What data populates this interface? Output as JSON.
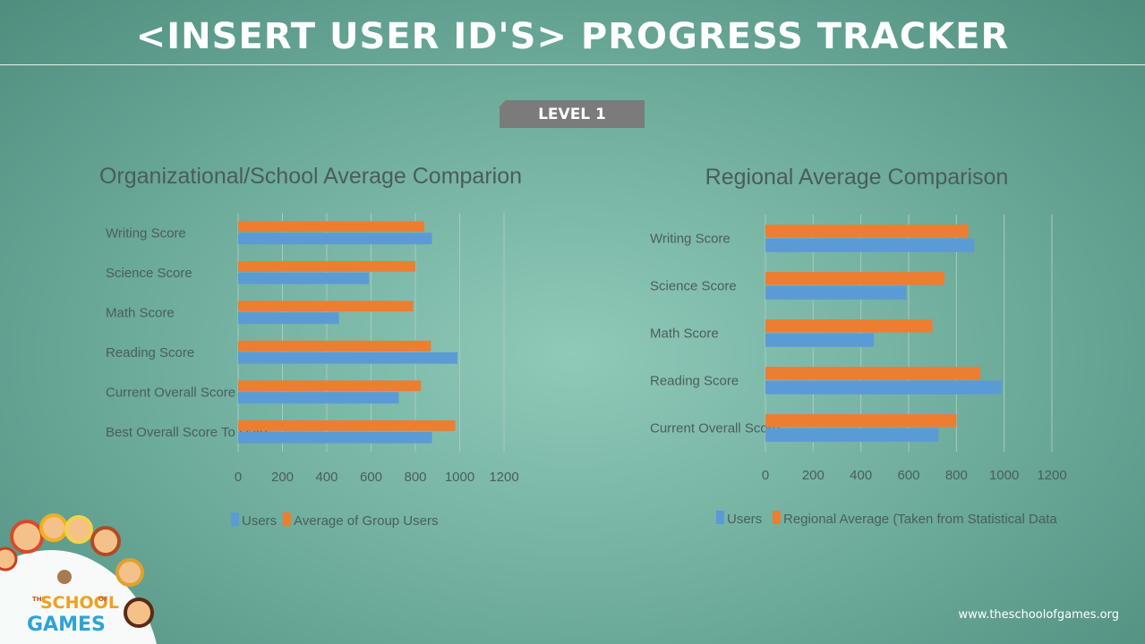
{
  "header": {
    "title": "<INSERT USER ID'S> PROGRESS TRACKER",
    "level": "LEVEL 1"
  },
  "colors": {
    "users": "#5b9bd5",
    "comparison": "#ed7d31"
  },
  "logo": {
    "line1": "THE",
    "line2": "SCHOOL",
    "line3": "OF",
    "line4": "GAMES"
  },
  "footer": {
    "url": "www.theschoolofgames.org"
  },
  "chart_data": [
    {
      "type": "bar",
      "orientation": "horizontal",
      "title": "Organizational/School Average Comparion",
      "categories": [
        "Writing Score",
        "Science Score",
        "Math Score",
        "Reading Score",
        "Current Overall Score",
        "Best Overall Score To Date"
      ],
      "series": [
        {
          "name": "Users",
          "values": [
            875,
            590,
            455,
            990,
            725,
            875
          ]
        },
        {
          "name": "Average of Group Users",
          "values": [
            840,
            800,
            790,
            870,
            825,
            980
          ]
        }
      ],
      "xlim": [
        0,
        1200
      ],
      "xticks": [
        "0",
        "200",
        "400",
        "600",
        "800",
        "1000",
        "1200"
      ],
      "grid": true,
      "legend": "bottom"
    },
    {
      "type": "bar",
      "orientation": "horizontal",
      "title": "Regional Average Comparison",
      "categories": [
        "Writing Score",
        "Science Score",
        "Math Score",
        "Reading Score",
        "Current Overall Score"
      ],
      "series": [
        {
          "name": "Users",
          "values": [
            875,
            590,
            455,
            990,
            725
          ]
        },
        {
          "name": "Regional Average (Taken from Statistical Data",
          "values": [
            850,
            750,
            700,
            900,
            800
          ]
        }
      ],
      "xlim": [
        0,
        1200
      ],
      "xticks": [
        "0",
        "200",
        "400",
        "600",
        "800",
        "1000",
        "1200"
      ],
      "grid": true,
      "legend": "bottom"
    }
  ]
}
